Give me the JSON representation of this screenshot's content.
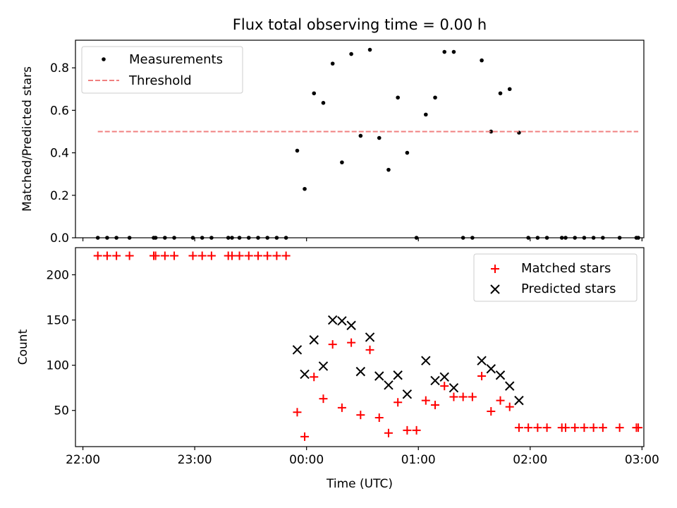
{
  "chart_data": [
    {
      "type": "scatter",
      "title": "Flux total observing time = 0.00 h",
      "xlabel": "",
      "ylabel": "Matched/Predicted stars",
      "xlim": [
        "21:56",
        "03:01"
      ],
      "ylim": [
        0,
        0.93
      ],
      "xticks": [
        "22:00",
        "23:00",
        "00:00",
        "01:00",
        "02:00",
        "03:00"
      ],
      "yticks": [
        0.0,
        0.2,
        0.4,
        0.6,
        0.8
      ],
      "ytick_labels": [
        "0.0",
        "0.2",
        "0.4",
        "0.6",
        "0.8"
      ],
      "grid": false,
      "legend": "upper-left",
      "series": [
        {
          "name": "Measurements",
          "marker": "dot",
          "color": "#000000",
          "points": [
            [
              "22:08",
              0
            ],
            [
              "22:13",
              0
            ],
            [
              "22:18",
              0
            ],
            [
              "22:25",
              0
            ],
            [
              "22:38",
              0
            ],
            [
              "22:39",
              0
            ],
            [
              "22:44",
              0
            ],
            [
              "22:49",
              0
            ],
            [
              "22:59",
              0
            ],
            [
              "23:04",
              0
            ],
            [
              "23:09",
              0
            ],
            [
              "23:18",
              0
            ],
            [
              "23:20",
              0
            ],
            [
              "23:24",
              0
            ],
            [
              "23:29",
              0
            ],
            [
              "23:34",
              0
            ],
            [
              "23:39",
              0
            ],
            [
              "23:44",
              0
            ],
            [
              "23:49",
              0
            ],
            [
              "23:55",
              0.41
            ],
            [
              "23:59",
              0.23
            ],
            [
              "00:04",
              0.68
            ],
            [
              "00:09",
              0.635
            ],
            [
              "00:14",
              0.82
            ],
            [
              "00:19",
              0.355
            ],
            [
              "00:24",
              0.865
            ],
            [
              "00:29",
              0.48
            ],
            [
              "00:34",
              0.885
            ],
            [
              "00:39",
              0.47
            ],
            [
              "00:44",
              0.32
            ],
            [
              "00:49",
              0.66
            ],
            [
              "00:54",
              0.4
            ],
            [
              "00:59",
              0
            ],
            [
              "01:04",
              0.58
            ],
            [
              "01:09",
              0.66
            ],
            [
              "01:14",
              0.875
            ],
            [
              "01:19",
              0.875
            ],
            [
              "01:24",
              0
            ],
            [
              "01:29",
              0
            ],
            [
              "01:34",
              0.835
            ],
            [
              "01:39",
              0.5
            ],
            [
              "01:44",
              0.68
            ],
            [
              "01:49",
              0.7
            ],
            [
              "01:54",
              0.495
            ],
            [
              "01:59",
              0
            ],
            [
              "02:04",
              0
            ],
            [
              "02:09",
              0
            ],
            [
              "02:17",
              0
            ],
            [
              "02:19",
              0
            ],
            [
              "02:24",
              0
            ],
            [
              "02:29",
              0
            ],
            [
              "02:34",
              0
            ],
            [
              "02:39",
              0
            ],
            [
              "02:48",
              0
            ],
            [
              "02:57",
              0
            ],
            [
              "02:58",
              0
            ]
          ]
        },
        {
          "name": "Threshold",
          "marker": "dashed-line",
          "color": "#f08080",
          "points": [
            [
              "22:08",
              0.5
            ],
            [
              "02:58",
              0.5
            ]
          ]
        }
      ]
    },
    {
      "type": "scatter",
      "title": "",
      "xlabel": "Time (UTC)",
      "ylabel": "Count",
      "xlim": [
        "21:56",
        "03:01"
      ],
      "ylim": [
        10,
        230
      ],
      "xticks": [
        "22:00",
        "23:00",
        "00:00",
        "01:00",
        "02:00",
        "03:00"
      ],
      "yticks": [
        50,
        100,
        150,
        200
      ],
      "ytick_labels": [
        "50",
        "100",
        "150",
        "200"
      ],
      "grid": false,
      "legend": "upper-right",
      "series": [
        {
          "name": "Matched stars",
          "marker": "plus",
          "color": "#ff0000",
          "points": [
            [
              "22:08",
              221
            ],
            [
              "22:13",
              221
            ],
            [
              "22:18",
              221
            ],
            [
              "22:25",
              221
            ],
            [
              "22:38",
              221
            ],
            [
              "22:39",
              221
            ],
            [
              "22:44",
              221
            ],
            [
              "22:49",
              221
            ],
            [
              "22:59",
              221
            ],
            [
              "23:04",
              221
            ],
            [
              "23:09",
              221
            ],
            [
              "23:18",
              221
            ],
            [
              "23:20",
              221
            ],
            [
              "23:24",
              221
            ],
            [
              "23:29",
              221
            ],
            [
              "23:34",
              221
            ],
            [
              "23:39",
              221
            ],
            [
              "23:44",
              221
            ],
            [
              "23:49",
              221
            ],
            [
              "23:55",
              48
            ],
            [
              "23:59",
              21
            ],
            [
              "00:04",
              87
            ],
            [
              "00:09",
              63
            ],
            [
              "00:14",
              123
            ],
            [
              "00:19",
              53
            ],
            [
              "00:24",
              125
            ],
            [
              "00:29",
              45
            ],
            [
              "00:34",
              117
            ],
            [
              "00:39",
              42
            ],
            [
              "00:44",
              25
            ],
            [
              "00:49",
              59
            ],
            [
              "00:54",
              28
            ],
            [
              "00:59",
              28
            ],
            [
              "01:04",
              61
            ],
            [
              "01:09",
              56
            ],
            [
              "01:14",
              77
            ],
            [
              "01:19",
              65
            ],
            [
              "01:24",
              65
            ],
            [
              "01:29",
              65
            ],
            [
              "01:34",
              88
            ],
            [
              "01:39",
              49
            ],
            [
              "01:44",
              61
            ],
            [
              "01:49",
              54
            ],
            [
              "01:54",
              31
            ],
            [
              "01:59",
              31
            ],
            [
              "02:04",
              31
            ],
            [
              "02:09",
              31
            ],
            [
              "02:17",
              31
            ],
            [
              "02:19",
              31
            ],
            [
              "02:24",
              31
            ],
            [
              "02:29",
              31
            ],
            [
              "02:34",
              31
            ],
            [
              "02:39",
              31
            ],
            [
              "02:48",
              31
            ],
            [
              "02:57",
              31
            ],
            [
              "02:58",
              31
            ]
          ]
        },
        {
          "name": "Predicted stars",
          "marker": "x",
          "color": "#000000",
          "points": [
            [
              "23:55",
              117
            ],
            [
              "23:59",
              90
            ],
            [
              "00:04",
              128
            ],
            [
              "00:09",
              99
            ],
            [
              "00:14",
              150
            ],
            [
              "00:19",
              149
            ],
            [
              "00:24",
              144
            ],
            [
              "00:29",
              93
            ],
            [
              "00:34",
              131
            ],
            [
              "00:39",
              88
            ],
            [
              "00:44",
              78
            ],
            [
              "00:49",
              89
            ],
            [
              "00:54",
              68
            ],
            [
              "01:04",
              105
            ],
            [
              "01:09",
              83
            ],
            [
              "01:14",
              87
            ],
            [
              "01:19",
              75
            ],
            [
              "01:34",
              105
            ],
            [
              "01:39",
              96
            ],
            [
              "01:44",
              89
            ],
            [
              "01:49",
              77
            ],
            [
              "01:54",
              61
            ]
          ]
        }
      ]
    }
  ]
}
